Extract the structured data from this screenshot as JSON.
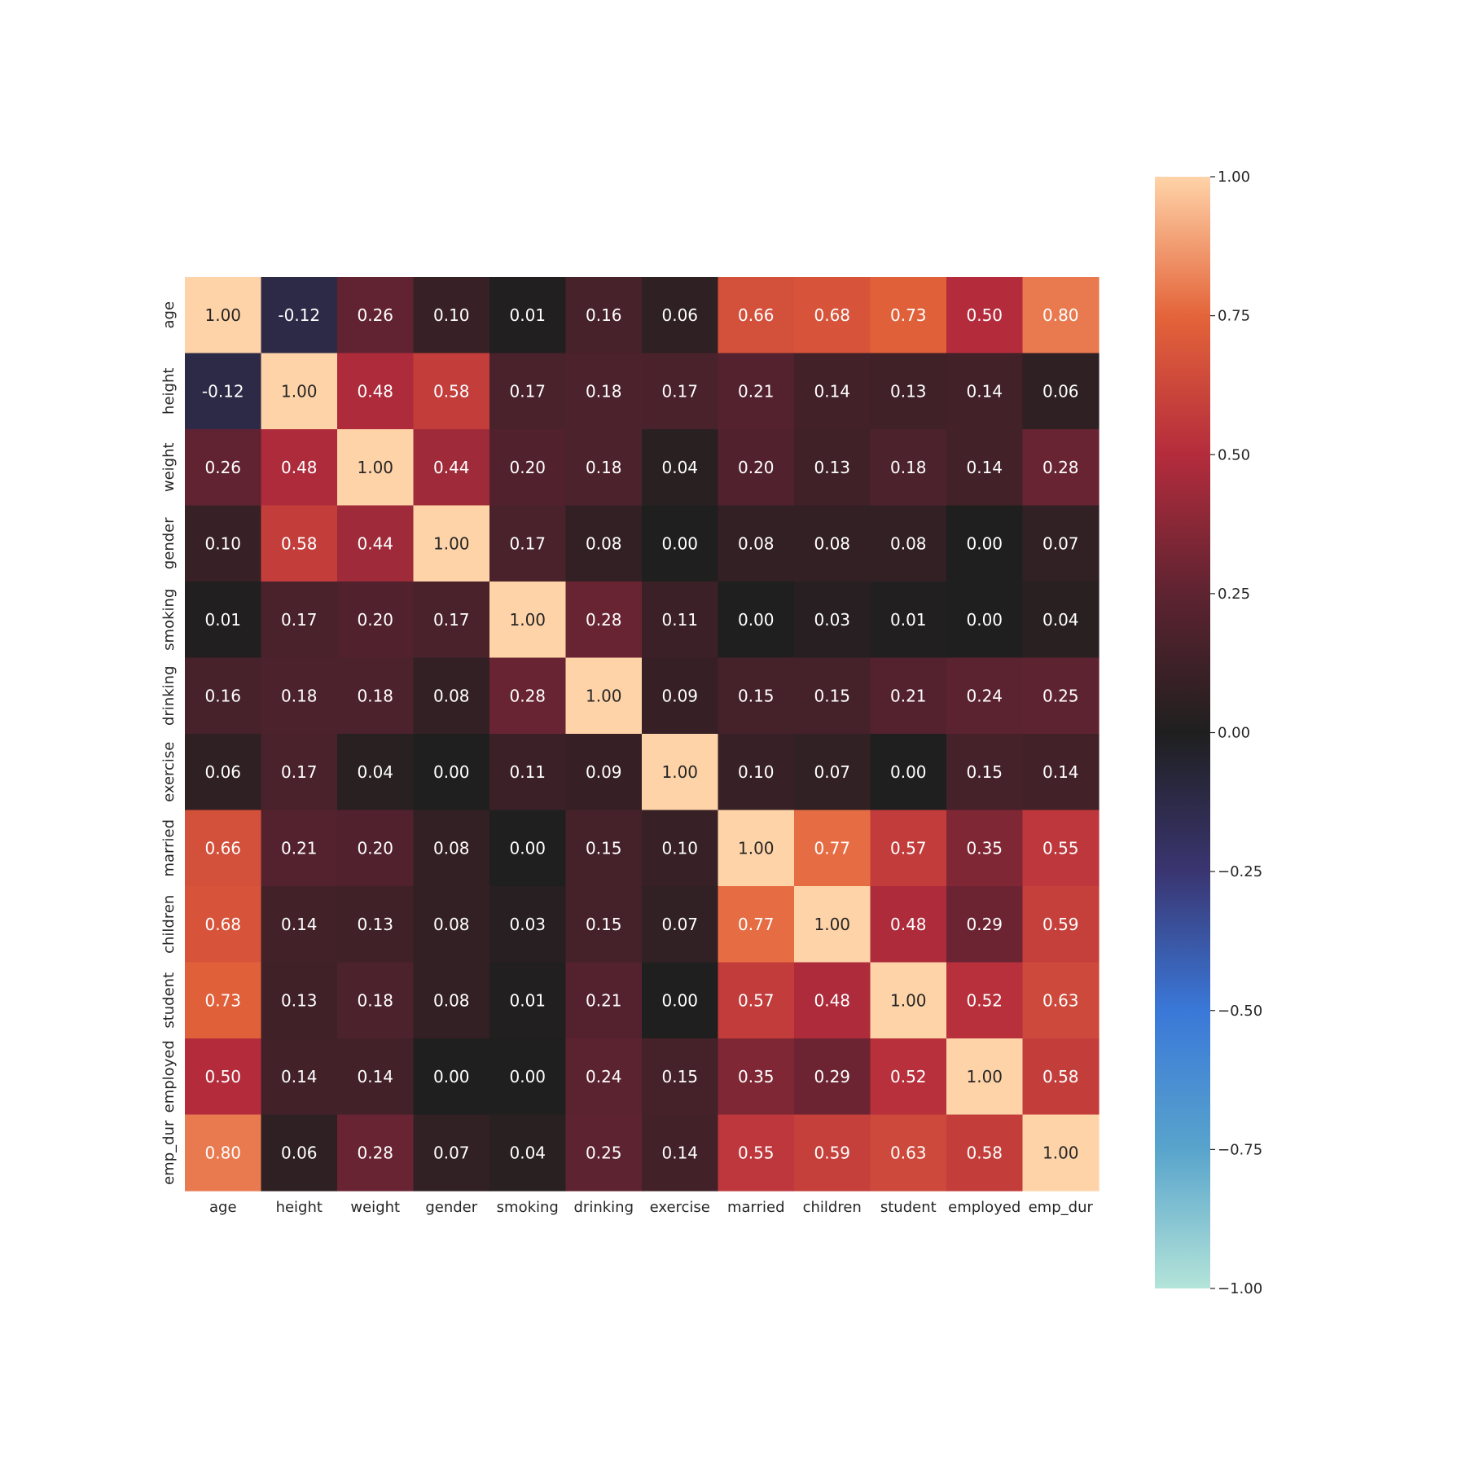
{
  "chart_data": {
    "type": "heatmap",
    "title": "",
    "xlabel": "",
    "ylabel": "",
    "variables": [
      "age",
      "height",
      "weight",
      "gender",
      "smoking",
      "drinking",
      "exercise",
      "married",
      "children",
      "student",
      "employed",
      "emp_dur"
    ],
    "matrix": [
      [
        1.0,
        -0.12,
        0.26,
        0.1,
        0.01,
        0.16,
        0.06,
        0.66,
        0.68,
        0.73,
        0.5,
        0.8
      ],
      [
        -0.12,
        1.0,
        0.48,
        0.58,
        0.17,
        0.18,
        0.17,
        0.21,
        0.14,
        0.13,
        0.14,
        0.06
      ],
      [
        0.26,
        0.48,
        1.0,
        0.44,
        0.2,
        0.18,
        0.04,
        0.2,
        0.13,
        0.18,
        0.14,
        0.28
      ],
      [
        0.1,
        0.58,
        0.44,
        1.0,
        0.17,
        0.08,
        0.0,
        0.08,
        0.08,
        0.08,
        0.0,
        0.07
      ],
      [
        0.01,
        0.17,
        0.2,
        0.17,
        1.0,
        0.28,
        0.11,
        0.0,
        0.03,
        0.01,
        0.0,
        0.04
      ],
      [
        0.16,
        0.18,
        0.18,
        0.08,
        0.28,
        1.0,
        0.09,
        0.15,
        0.15,
        0.21,
        0.24,
        0.25
      ],
      [
        0.06,
        0.17,
        0.04,
        0.0,
        0.11,
        0.09,
        1.0,
        0.1,
        0.07,
        0.0,
        0.15,
        0.14
      ],
      [
        0.66,
        0.21,
        0.2,
        0.08,
        0.0,
        0.15,
        0.1,
        1.0,
        0.77,
        0.57,
        0.35,
        0.55
      ],
      [
        0.68,
        0.14,
        0.13,
        0.08,
        0.03,
        0.15,
        0.07,
        0.77,
        1.0,
        0.48,
        0.29,
        0.59
      ],
      [
        0.73,
        0.13,
        0.18,
        0.08,
        0.01,
        0.21,
        0.0,
        0.57,
        0.48,
        1.0,
        0.52,
        0.63
      ],
      [
        0.5,
        0.14,
        0.14,
        0.0,
        0.0,
        0.24,
        0.15,
        0.35,
        0.29,
        0.52,
        1.0,
        0.58
      ],
      [
        0.8,
        0.06,
        0.28,
        0.07,
        0.04,
        0.25,
        0.14,
        0.55,
        0.59,
        0.63,
        0.58,
        1.0
      ]
    ],
    "value_format": "2 decimals",
    "colorbar": {
      "range": [
        -1.0,
        1.0
      ],
      "ticks": [
        1.0,
        0.75,
        0.5,
        0.25,
        0.0,
        -0.25,
        -0.5,
        -0.75,
        -1.0
      ],
      "tick_labels": [
        "1.00",
        "0.75",
        "0.50",
        "0.25",
        "0.00",
        "−0.25",
        "−0.50",
        "−0.75",
        "−1.00"
      ],
      "colormap": "icefire",
      "stops": [
        {
          "v": -1.0,
          "color": "#b4e4d9"
        },
        {
          "v": -0.75,
          "color": "#58a4cc"
        },
        {
          "v": -0.5,
          "color": "#3a78d8"
        },
        {
          "v": -0.25,
          "color": "#3a3571"
        },
        {
          "v": 0.0,
          "color": "#1f1f1f"
        },
        {
          "v": 0.25,
          "color": "#5e2331"
        },
        {
          "v": 0.5,
          "color": "#b42c3c"
        },
        {
          "v": 0.75,
          "color": "#e4643a"
        },
        {
          "v": 1.0,
          "color": "#ffd3a8"
        }
      ]
    },
    "grid": false,
    "legend": "colorbar-right"
  }
}
